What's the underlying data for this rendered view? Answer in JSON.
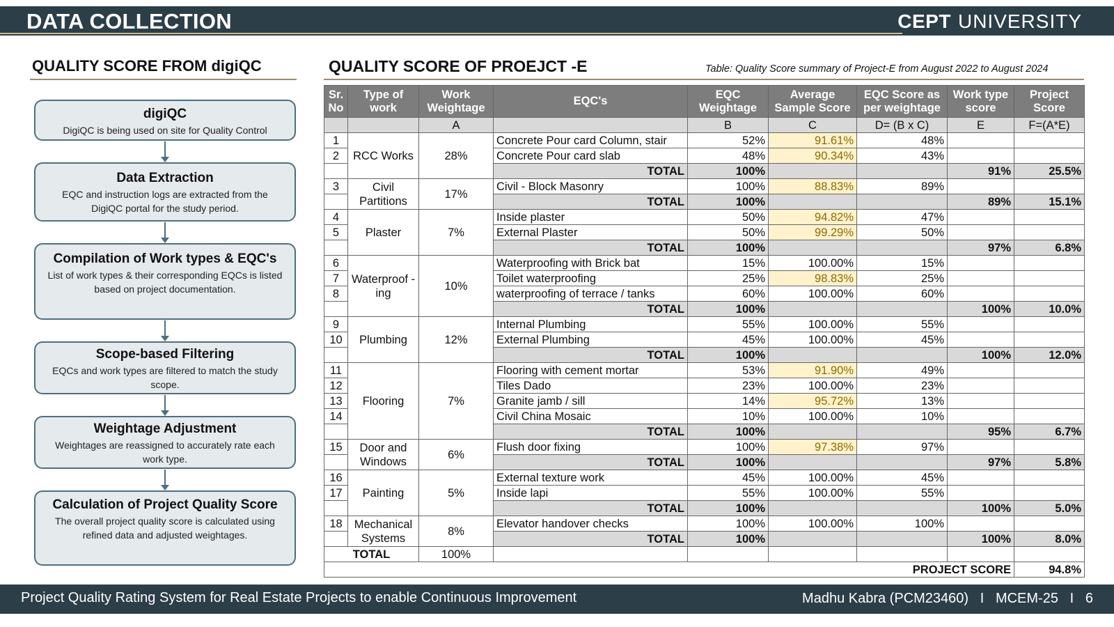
{
  "header": {
    "title": "DATA COLLECTION",
    "logo_bold": "CEPT",
    "logo_light": "UNIVERSITY"
  },
  "left": {
    "title": "QUALITY SCORE FROM digiQC",
    "steps": [
      {
        "heading": "digiQC",
        "desc": "DigiQC is being used on site for Quality Control"
      },
      {
        "heading": "Data Extraction",
        "desc": "EQC and instruction logs are extracted from the DigiQC portal for the study period."
      },
      {
        "heading": "Compilation of Work types & EQC's",
        "desc": "List of work types & their corresponding EQCs is listed  based on project documentation."
      },
      {
        "heading": "Scope-based Filtering",
        "desc": "EQCs and work types are filtered to match the study scope."
      },
      {
        "heading": "Weightage Adjustment",
        "desc": "Weightages are reassigned to accurately rate each work type."
      },
      {
        "heading": "Calculation of Project Quality Score",
        "desc": "The overall project quality score is calculated using refined data and adjusted weightages."
      }
    ]
  },
  "right": {
    "title": "QUALITY SCORE OF PROEJCT -E",
    "caption": "Table: Quality Score summary of Project-E from August 2022 to August 2024",
    "headers": [
      "Sr. No",
      "Type of work",
      "Work Weightage",
      "EQC's",
      "EQC Weightage",
      "Average Sample Score",
      "EQC Score as per weightage",
      "Work type score",
      "Project Score"
    ],
    "letters": [
      "",
      "",
      "A",
      "",
      "B",
      "C",
      "D= (B x C)",
      "E",
      "F=(A*E)"
    ],
    "total_label": "TOTAL",
    "groups": [
      {
        "work": "RCC Works",
        "weight": "28%",
        "rows": [
          {
            "no": "1",
            "eqc": "Concrete Pour card Column, stair",
            "b": "52%",
            "c": "91.61%",
            "d": "48%",
            "hl": true
          },
          {
            "no": "2",
            "eqc": "Concrete Pour card slab",
            "b": "48%",
            "c": "90.34%",
            "d": "43%",
            "hl": true
          }
        ],
        "total": {
          "b": "100%",
          "e": "91%",
          "f": "25.5%"
        }
      },
      {
        "work": "Civil Partitions",
        "weight": "17%",
        "rows": [
          {
            "no": "3",
            "eqc": "Civil - Block Masonry",
            "b": "100%",
            "c": "88.83%",
            "d": "89%",
            "hl": true
          }
        ],
        "total": {
          "b": "100%",
          "e": "89%",
          "f": "15.1%"
        }
      },
      {
        "work": "Plaster",
        "weight": "7%",
        "rows": [
          {
            "no": "4",
            "eqc": "Inside plaster",
            "b": "50%",
            "c": "94.82%",
            "d": "47%",
            "hl": true
          },
          {
            "no": "5",
            "eqc": "External Plaster",
            "b": "50%",
            "c": "99.29%",
            "d": "50%",
            "hl": true
          }
        ],
        "total": {
          "b": "100%",
          "e": "97%",
          "f": "6.8%"
        }
      },
      {
        "work": "Waterproof -ing",
        "weight": "10%",
        "rows": [
          {
            "no": "6",
            "eqc": "Waterproofing with Brick bat",
            "b": "15%",
            "c": "100.00%",
            "d": "15%",
            "hl": false
          },
          {
            "no": "7",
            "eqc": "Toilet waterproofing",
            "b": "25%",
            "c": "98.83%",
            "d": "25%",
            "hl": true
          },
          {
            "no": "8",
            "eqc": "waterproofing of terrace / tanks",
            "b": "60%",
            "c": "100.00%",
            "d": "60%",
            "hl": false
          }
        ],
        "total": {
          "b": "100%",
          "e": "100%",
          "f": "10.0%"
        }
      },
      {
        "work": "Plumbing",
        "weight": "12%",
        "rows": [
          {
            "no": "9",
            "eqc": "Internal Plumbing",
            "b": "55%",
            "c": "100.00%",
            "d": "55%",
            "hl": false
          },
          {
            "no": "10",
            "eqc": "External Plumbing",
            "b": "45%",
            "c": "100.00%",
            "d": "45%",
            "hl": false
          }
        ],
        "total": {
          "b": "100%",
          "e": "100%",
          "f": "12.0%"
        }
      },
      {
        "work": "Flooring",
        "weight": "7%",
        "rows": [
          {
            "no": "11",
            "eqc": "Flooring with cement mortar",
            "b": "53%",
            "c": "91.90%",
            "d": "49%",
            "hl": true
          },
          {
            "no": "12",
            "eqc": "Tiles Dado",
            "b": "23%",
            "c": "100.00%",
            "d": "23%",
            "hl": false
          },
          {
            "no": "13",
            "eqc": "Granite jamb / sill",
            "b": "14%",
            "c": "95.72%",
            "d": "13%",
            "hl": true
          },
          {
            "no": "14",
            "eqc": "Civil China Mosaic",
            "b": "10%",
            "c": "100.00%",
            "d": "10%",
            "hl": false
          }
        ],
        "total": {
          "b": "100%",
          "e": "95%",
          "f": "6.7%"
        }
      },
      {
        "work": "Door and Windows",
        "weight": "6%",
        "rows": [
          {
            "no": "15",
            "eqc": "Flush door fixing",
            "b": "100%",
            "c": "97.38%",
            "d": "97%",
            "hl": true
          }
        ],
        "total": {
          "b": "100%",
          "e": "97%",
          "f": "5.8%"
        }
      },
      {
        "work": "Painting",
        "weight": "5%",
        "rows": [
          {
            "no": "16",
            "eqc": "External texture work",
            "b": "45%",
            "c": "100.00%",
            "d": "45%",
            "hl": false
          },
          {
            "no": "17",
            "eqc": "Inside lapi",
            "b": "55%",
            "c": "100.00%",
            "d": "55%",
            "hl": false
          }
        ],
        "total": {
          "b": "100%",
          "e": "100%",
          "f": "5.0%"
        }
      },
      {
        "work": "Mechanical Systems",
        "weight": "8%",
        "rows": [
          {
            "no": "18",
            "eqc": "Elevator handover checks",
            "b": "100%",
            "c": "100.00%",
            "d": "100%",
            "hl": false
          }
        ],
        "total": {
          "b": "100%",
          "e": "100%",
          "f": "8.0%"
        }
      }
    ],
    "grand_total": {
      "label": "TOTAL",
      "weight": "100%"
    },
    "project_score": {
      "label": "PROJECT SCORE",
      "value": "94.8%"
    }
  },
  "footer": {
    "left": "Project Quality Rating System for Real Estate Projects to enable Continuous Improvement",
    "right": "Madhu Kabra (PCM23460)   I   MCEM-25   I   6"
  }
}
